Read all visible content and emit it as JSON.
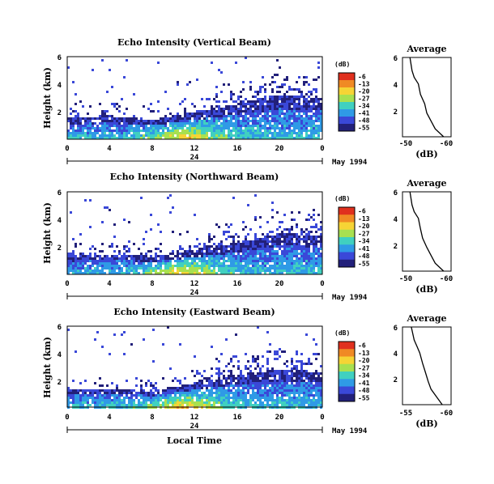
{
  "figure": {
    "xlabel": "Local Time",
    "x_ticks": [
      "0",
      "4",
      "8",
      "12",
      "16",
      "20",
      "0"
    ],
    "day_label": "24",
    "date_label": "May 1994",
    "ylabel": "Height (km)",
    "y_ticks": [
      "6",
      "4",
      "2"
    ],
    "colorbar_unit": "(dB)",
    "colorbar_ticks": [
      "-6",
      "-13",
      "-20",
      "-27",
      "-34",
      "-41",
      "-48",
      "-55"
    ],
    "colorbar_colors": [
      "#e0301e",
      "#f08a24",
      "#f6d435",
      "#a8e050",
      "#40d0c0",
      "#2f9ae6",
      "#3a48d8",
      "#22207a"
    ],
    "avg_title": "Average",
    "avg_xlabel": "(dB)"
  },
  "panels": [
    {
      "title": "Echo Intensity (Vertical Beam)",
      "avg_ticks": [
        "-50",
        "-60"
      ]
    },
    {
      "title": "Echo Intensity (Northward Beam)",
      "avg_ticks": [
        "-50",
        "-60"
      ]
    },
    {
      "title": "Echo Intensity (Eastward Beam)",
      "avg_ticks": [
        "-55",
        "-60"
      ]
    }
  ],
  "chart_data": [
    {
      "type": "heatmap",
      "title": "Echo Intensity (Vertical Beam)",
      "xlabel": "",
      "ylabel": "Height (km)",
      "xlim": [
        0,
        24
      ],
      "ylim": [
        0,
        6
      ],
      "colorbar": {
        "label": "(dB)",
        "range": [
          -55,
          -6
        ]
      },
      "echo_top_km": [
        [
          0,
          1.6
        ],
        [
          4,
          1.7
        ],
        [
          8,
          1.4
        ],
        [
          12,
          2.0
        ],
        [
          16,
          2.6
        ],
        [
          20,
          3.2
        ],
        [
          24,
          3.0
        ]
      ]
    },
    {
      "type": "line",
      "title": "Average",
      "xlabel": "(dB)",
      "ylabel": "Height (km)",
      "x": [
        -51,
        -51.5,
        -52,
        -53,
        -53.5,
        -54.5,
        -55,
        -56,
        -57,
        -59
      ],
      "y": [
        6,
        5,
        4.5,
        4,
        3.2,
        2.5,
        1.8,
        1.2,
        0.6,
        0
      ]
    },
    {
      "type": "heatmap",
      "title": "Echo Intensity (Northward Beam)",
      "xlabel": "",
      "ylabel": "Height (km)",
      "xlim": [
        0,
        24
      ],
      "ylim": [
        0,
        6
      ],
      "colorbar": {
        "label": "(dB)",
        "range": [
          -55,
          -6
        ]
      },
      "echo_top_km": [
        [
          0,
          1.4
        ],
        [
          4,
          1.5
        ],
        [
          8,
          1.3
        ],
        [
          12,
          1.8
        ],
        [
          16,
          2.3
        ],
        [
          20,
          3.0
        ],
        [
          24,
          2.8
        ]
      ]
    },
    {
      "type": "line",
      "title": "Average",
      "xlabel": "(dB)",
      "ylabel": "Height (km)",
      "x": [
        -51,
        -51.5,
        -52,
        -53,
        -53.5,
        -54,
        -55,
        -56,
        -57,
        -59
      ],
      "y": [
        6,
        5,
        4.5,
        4,
        3.2,
        2.5,
        1.8,
        1.2,
        0.6,
        0
      ]
    },
    {
      "type": "heatmap",
      "title": "Echo Intensity (Eastward Beam)",
      "xlabel": "Local Time",
      "ylabel": "Height (km)",
      "xlim": [
        0,
        24
      ],
      "ylim": [
        0,
        6
      ],
      "colorbar": {
        "label": "(dB)",
        "range": [
          -55,
          -6
        ]
      },
      "echo_top_km": [
        [
          0,
          1.3
        ],
        [
          4,
          1.4
        ],
        [
          8,
          1.2
        ],
        [
          12,
          1.8
        ],
        [
          16,
          2.4
        ],
        [
          20,
          2.8
        ],
        [
          24,
          2.6
        ]
      ]
    },
    {
      "type": "line",
      "title": "Average",
      "xlabel": "(dB)",
      "ylabel": "Height (km)",
      "x": [
        -54.5,
        -55,
        -55.5,
        -56,
        -56.5,
        -57,
        -57.5,
        -58,
        -59,
        -60
      ],
      "y": [
        6,
        5,
        4.5,
        4,
        3.2,
        2.5,
        1.8,
        1.2,
        0.6,
        0
      ]
    }
  ]
}
